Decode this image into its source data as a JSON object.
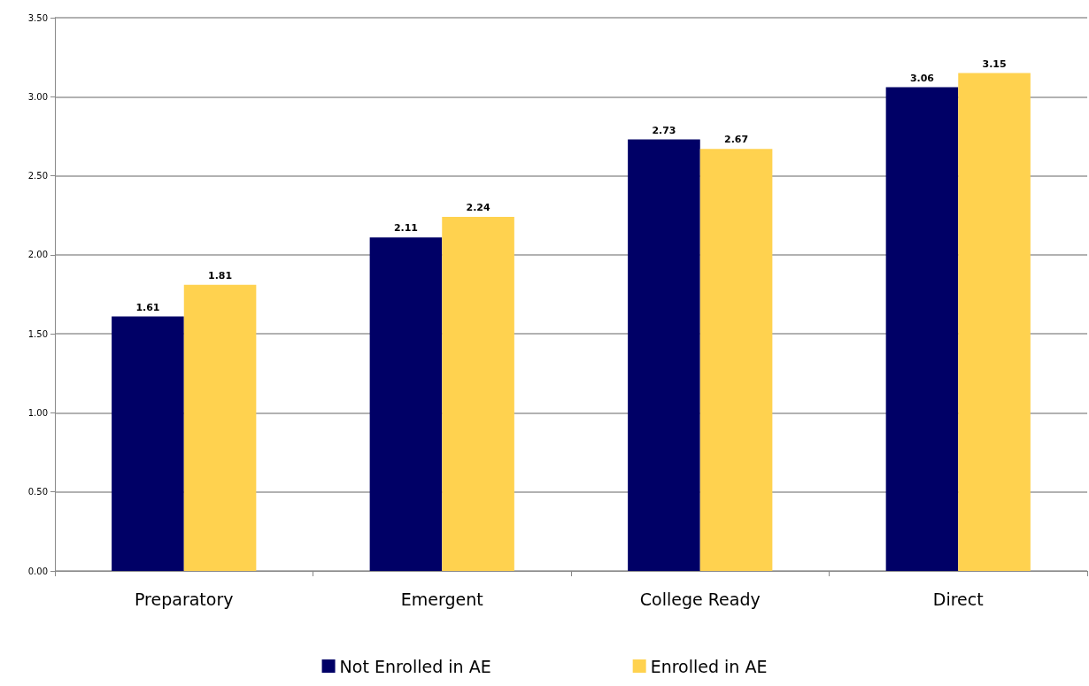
{
  "chart_data": {
    "type": "bar",
    "categories": [
      "Preparatory",
      "Emergent",
      "College Ready",
      "Direct"
    ],
    "series": [
      {
        "name": "Not Enrolled in AE",
        "color": "#000066",
        "values": [
          1.61,
          2.11,
          2.73,
          3.06
        ]
      },
      {
        "name": "Enrolled in AE",
        "color": "#ffd24f",
        "values": [
          1.81,
          2.24,
          2.67,
          3.15
        ]
      }
    ],
    "ylim": [
      0,
      3.5
    ],
    "yticks": [
      {
        "value": 0,
        "label": "0.00"
      },
      {
        "value": 0.5,
        "label": "0.50"
      },
      {
        "value": 1,
        "label": "1.00"
      },
      {
        "value": 1.5,
        "label": "1.50"
      },
      {
        "value": 2,
        "label": "2.00"
      },
      {
        "value": 2.5,
        "label": "2.50"
      },
      {
        "value": 3,
        "label": "3.00"
      },
      {
        "value": 3.5,
        "label": "3.50"
      }
    ],
    "grid": "y",
    "legend": "bottom",
    "data_labels": true
  }
}
